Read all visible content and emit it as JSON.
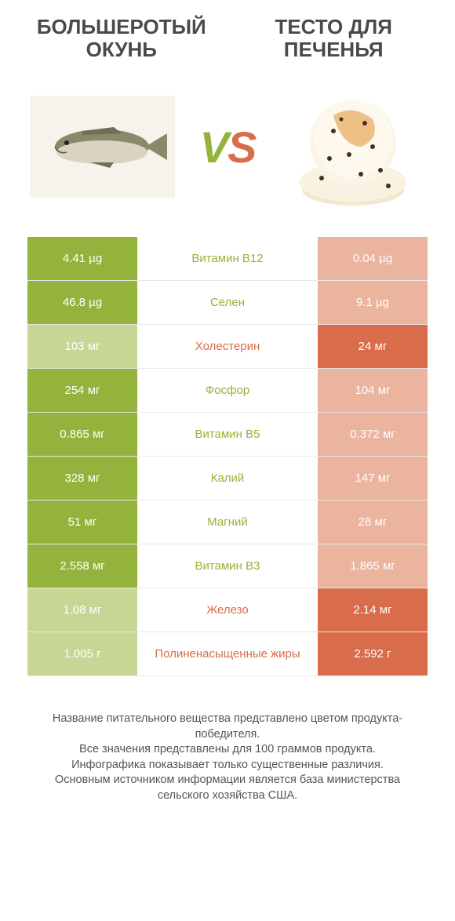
{
  "title_left": "БОЛЬШЕРОТЫЙ ОКУНЬ",
  "title_right": "ТЕСТО ДЛЯ ПЕЧЕНЬЯ",
  "vs_v": "V",
  "vs_s": "S",
  "colors": {
    "green_win": "#94b33c",
    "green_lose": "#c8d695",
    "orange_win": "#d96c4a",
    "orange_lose": "#eab49f"
  },
  "rows": [
    {
      "left": "4.41 µg",
      "mid": "Витамин B12",
      "right": "0.04 µg",
      "winner": "left"
    },
    {
      "left": "46.8 µg",
      "mid": "Селен",
      "right": "9.1 µg",
      "winner": "left"
    },
    {
      "left": "103 мг",
      "mid": "Холестерин",
      "right": "24 мг",
      "winner": "right"
    },
    {
      "left": "254 мг",
      "mid": "Фосфор",
      "right": "104 мг",
      "winner": "left"
    },
    {
      "left": "0.865 мг",
      "mid": "Витамин B5",
      "right": "0.372 мг",
      "winner": "left"
    },
    {
      "left": "328 мг",
      "mid": "Калий",
      "right": "147 мг",
      "winner": "left"
    },
    {
      "left": "51 мг",
      "mid": "Магний",
      "right": "28 мг",
      "winner": "left"
    },
    {
      "left": "2.558 мг",
      "mid": "Витамин B3",
      "right": "1.865 мг",
      "winner": "left"
    },
    {
      "left": "1.08 мг",
      "mid": "Железо",
      "right": "2.14 мг",
      "winner": "right"
    },
    {
      "left": "1.005 г",
      "mid": "Полиненасыщенные жиры",
      "right": "2.592 г",
      "winner": "right"
    }
  ],
  "footnote": "Название питательного вещества представлено цветом продукта-победителя.\nВсе значения представлены для 100 граммов продукта.\nИнфографика показывает только существенные различия.\nОсновным источником информации является база министерства сельского хозяйства США."
}
